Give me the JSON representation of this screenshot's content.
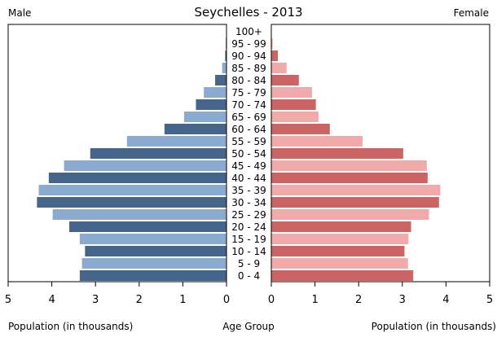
{
  "chart_data": {
    "type": "bar",
    "title": "Seychelles - 2013",
    "left_label": "Male",
    "right_label": "Female",
    "xlabel_left": "Population (in thousands)",
    "xlabel_center": "Age Group",
    "xlabel_right": "Population (in thousands)",
    "xlim": [
      0,
      5
    ],
    "x_ticks": [
      "0",
      "1",
      "2",
      "3",
      "4",
      "5"
    ],
    "orientation": "horizontal-mirrored",
    "categories": [
      "100+",
      "95 - 99",
      "90 - 94",
      "85 - 89",
      "80 - 84",
      "75 - 79",
      "70 - 74",
      "65 - 69",
      "60 - 64",
      "55 - 59",
      "50 - 54",
      "45 - 49",
      "40 - 44",
      "35 - 39",
      "30 - 34",
      "25 - 29",
      "20 - 24",
      "15 - 19",
      "10 - 14",
      "5 - 9",
      "0 - 4"
    ],
    "series": [
      {
        "name": "Male",
        "color_dark": "#45658b",
        "color_light": "#8aabcf",
        "values": [
          0.0,
          0.02,
          0.03,
          0.1,
          0.26,
          0.52,
          0.7,
          0.97,
          1.42,
          2.28,
          3.12,
          3.72,
          4.07,
          4.3,
          4.34,
          3.98,
          3.6,
          3.36,
          3.24,
          3.31,
          3.36
        ]
      },
      {
        "name": "Female",
        "color_dark": "#cd6464",
        "color_light": "#f0aaaa",
        "values": [
          0.0,
          0.03,
          0.15,
          0.35,
          0.63,
          0.93,
          1.02,
          1.08,
          1.34,
          2.09,
          3.02,
          3.56,
          3.58,
          3.87,
          3.84,
          3.61,
          3.2,
          3.14,
          3.05,
          3.13,
          3.25
        ]
      }
    ]
  }
}
